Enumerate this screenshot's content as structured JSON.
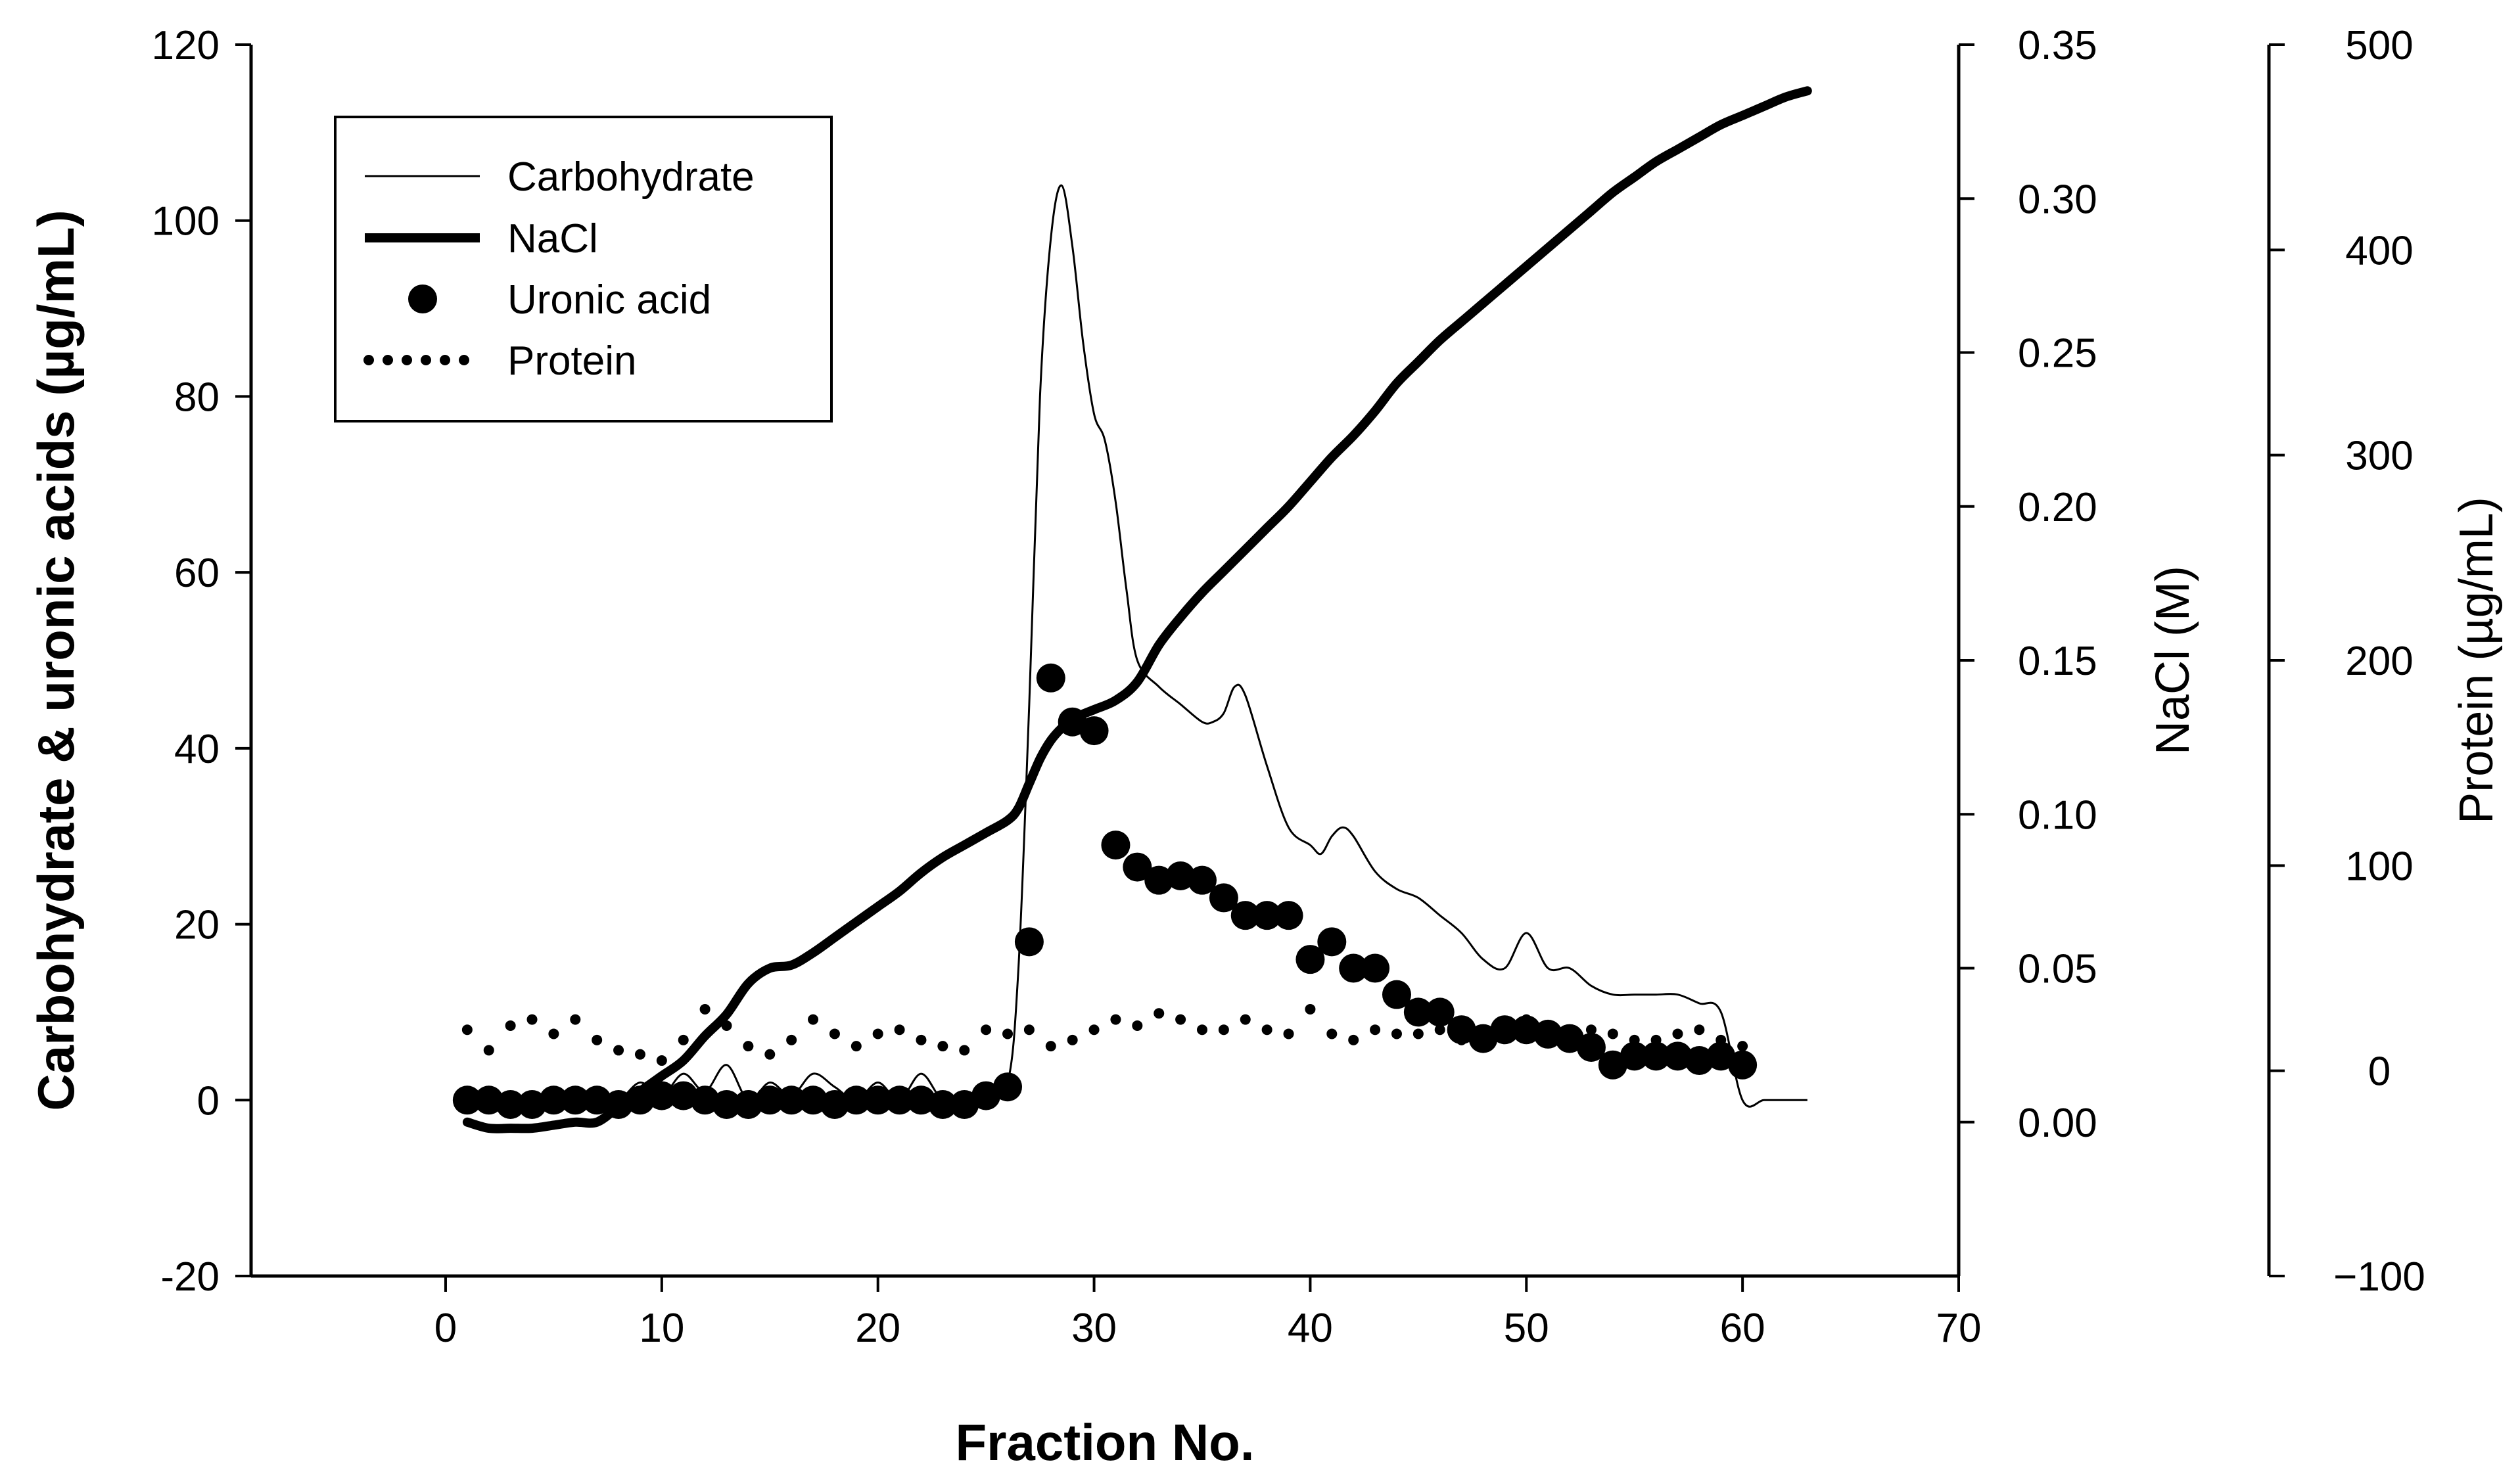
{
  "chart_data": {
    "type": "line",
    "title": "",
    "xlabel": "Fraction No.",
    "ylabel": "Carbohydrate & uronic acids (µg/mL)",
    "y2label": "NaCl (M)",
    "y3label": "Protein (µg/mL)",
    "xlim": [
      -9,
      70
    ],
    "ylim": [
      -20,
      120
    ],
    "y2lim": [
      -0.05,
      0.35
    ],
    "y3lim": [
      -100,
      500
    ],
    "x_ticks": [
      0,
      10,
      20,
      30,
      40,
      50,
      60,
      70
    ],
    "y_ticks": [
      -20,
      0,
      20,
      40,
      60,
      80,
      100,
      120
    ],
    "y2_ticks": [
      "0.00",
      "0.05",
      "0.10",
      "0.15",
      "0.20",
      "0.25",
      "0.30",
      "0.35"
    ],
    "y3_ticks": [
      -100,
      0,
      100,
      200,
      300,
      400,
      500
    ],
    "grid": false,
    "legend_position": "top-left",
    "series": [
      {
        "name": "Carbohydrate",
        "axis": "left",
        "style": "thin-line",
        "x": [
          1,
          2,
          3,
          4,
          5,
          6,
          7,
          8,
          9,
          10,
          11,
          12,
          13,
          14,
          15,
          16,
          17,
          18,
          19,
          20,
          21,
          22,
          23,
          24,
          25,
          26,
          26.5,
          27,
          27.5,
          28,
          28.5,
          29,
          29.5,
          30,
          30.5,
          31,
          31.5,
          32,
          33,
          34,
          35,
          35.5,
          36,
          36.5,
          37,
          38,
          39,
          40,
          40.5,
          41,
          41.5,
          42,
          43,
          44,
          45,
          46,
          47,
          48,
          49,
          50,
          51,
          52,
          53,
          54,
          55,
          56,
          57,
          58,
          59,
          60,
          61,
          62,
          63
        ],
        "values": [
          1,
          0,
          0,
          -0.5,
          0,
          0,
          0.5,
          0,
          2,
          0.5,
          3,
          1,
          4,
          0,
          2,
          0.5,
          3,
          1.5,
          0,
          2,
          0,
          3,
          0,
          0.5,
          1,
          2,
          15,
          45,
          80,
          98,
          104,
          97,
          86,
          78,
          75,
          68,
          58,
          50,
          47,
          45,
          43,
          43,
          44,
          47,
          46,
          38,
          31,
          29,
          28,
          30,
          31,
          30,
          26,
          24,
          23,
          21,
          19,
          16,
          15,
          19,
          15,
          15,
          13,
          12,
          12,
          12,
          12,
          11,
          10,
          0,
          0,
          0,
          0
        ]
      },
      {
        "name": "NaCl",
        "axis": "right-1",
        "style": "thick-line",
        "x": [
          1,
          2,
          3,
          4,
          5,
          6,
          7,
          8,
          9,
          10,
          11,
          12,
          13,
          14,
          15,
          16,
          17,
          18,
          19,
          20,
          21,
          22,
          23,
          24,
          25,
          26,
          26.5,
          27,
          27.5,
          28,
          28.5,
          29,
          30,
          31,
          32,
          33,
          34,
          35,
          36,
          37,
          38,
          39,
          40,
          41,
          42,
          43,
          44,
          45,
          46,
          47,
          48,
          49,
          50,
          51,
          52,
          53,
          54,
          55,
          56,
          57,
          58,
          59,
          60,
          61,
          62,
          63
        ],
        "values": [
          0.0,
          -0.002,
          -0.002,
          -0.002,
          -0.001,
          0.0,
          0.0,
          0.005,
          0.01,
          0.015,
          0.02,
          0.028,
          0.035,
          0.045,
          0.05,
          0.051,
          0.055,
          0.06,
          0.065,
          0.07,
          0.075,
          0.081,
          0.086,
          0.09,
          0.094,
          0.098,
          0.102,
          0.11,
          0.118,
          0.124,
          0.128,
          0.131,
          0.134,
          0.137,
          0.143,
          0.155,
          0.164,
          0.172,
          0.179,
          0.186,
          0.193,
          0.2,
          0.208,
          0.216,
          0.223,
          0.231,
          0.24,
          0.247,
          0.254,
          0.26,
          0.266,
          0.272,
          0.278,
          0.284,
          0.29,
          0.296,
          0.302,
          0.307,
          0.312,
          0.316,
          0.32,
          0.324,
          0.327,
          0.33,
          0.333,
          0.335
        ]
      },
      {
        "name": "Uronic acid",
        "axis": "left",
        "style": "dots",
        "x": [
          1,
          2,
          3,
          4,
          5,
          6,
          7,
          8,
          9,
          10,
          11,
          12,
          13,
          14,
          15,
          16,
          17,
          18,
          19,
          20,
          21,
          22,
          23,
          24,
          25,
          26,
          27,
          28,
          29,
          30,
          31,
          32,
          33,
          34,
          35,
          36,
          37,
          38,
          39,
          40,
          41,
          42,
          43,
          44,
          45,
          46,
          47,
          48,
          49,
          50,
          51,
          52,
          53,
          54,
          55,
          56,
          57,
          58,
          59,
          60
        ],
        "values": [
          0,
          0,
          -0.5,
          -0.5,
          0,
          0,
          0,
          -0.5,
          0,
          0.5,
          0.5,
          0,
          -0.5,
          -0.5,
          0,
          0,
          0,
          -0.5,
          0,
          0,
          0,
          0,
          -0.5,
          -0.5,
          0.5,
          1.5,
          18,
          48,
          43,
          42,
          29,
          26.5,
          25,
          25.5,
          25,
          23,
          21,
          21,
          21,
          16,
          18,
          15,
          15,
          12,
          10,
          10,
          8,
          7,
          8,
          8,
          7.5,
          7,
          6,
          4,
          5,
          5,
          5,
          4.5,
          5,
          4
        ]
      },
      {
        "name": "Protein",
        "axis": "right-2",
        "style": "dotted",
        "x": [
          1,
          2,
          3,
          4,
          5,
          6,
          7,
          8,
          9,
          10,
          11,
          12,
          13,
          14,
          15,
          16,
          17,
          18,
          19,
          20,
          21,
          22,
          23,
          24,
          25,
          26,
          27,
          28,
          29,
          30,
          31,
          32,
          33,
          34,
          35,
          36,
          37,
          38,
          39,
          40,
          41,
          42,
          43,
          44,
          45,
          46,
          47,
          48,
          49,
          50,
          51,
          52,
          53,
          54,
          55,
          56,
          57,
          58,
          59,
          60
        ],
        "values": [
          20,
          10,
          22,
          25,
          18,
          25,
          15,
          10,
          8,
          5,
          15,
          30,
          22,
          12,
          8,
          15,
          25,
          18,
          12,
          18,
          20,
          15,
          12,
          10,
          20,
          18,
          20,
          12,
          15,
          20,
          25,
          22,
          28,
          25,
          20,
          20,
          25,
          20,
          18,
          30,
          18,
          15,
          20,
          18,
          18,
          20,
          15,
          20,
          22,
          25,
          20,
          15,
          20,
          18,
          15,
          15,
          18,
          20,
          15,
          12
        ]
      }
    ]
  }
}
